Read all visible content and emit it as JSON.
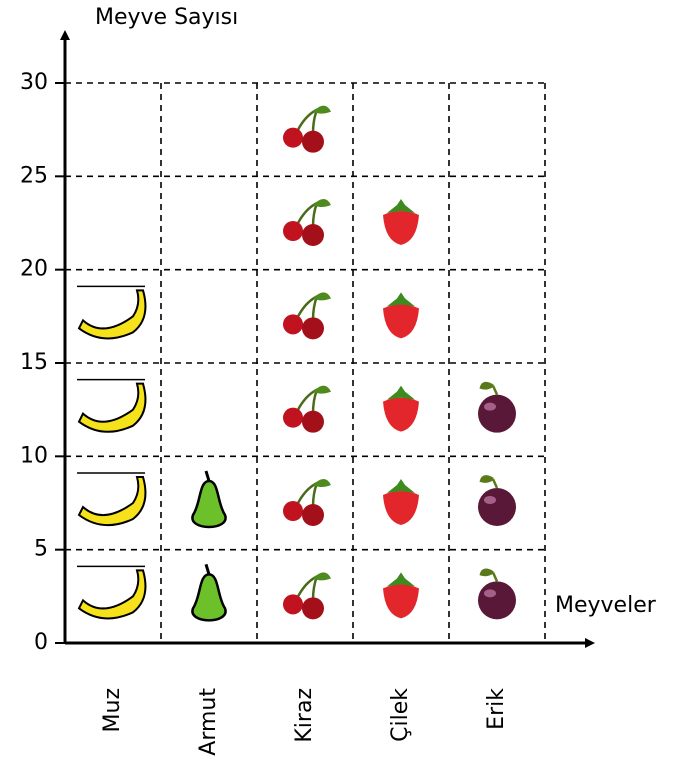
{
  "chart_data": {
    "type": "pictograph",
    "x_label": "Meyveler",
    "y_label": "Meyve Sayısı",
    "categories": [
      "Muz",
      "Armut",
      "Kiraz",
      "Çilek",
      "Erik"
    ],
    "values": [
      20,
      10,
      30,
      25,
      15
    ],
    "ylim": [
      0,
      30
    ],
    "yticks": [
      0,
      5,
      10,
      15,
      20,
      25,
      30
    ],
    "grid": true
  }
}
